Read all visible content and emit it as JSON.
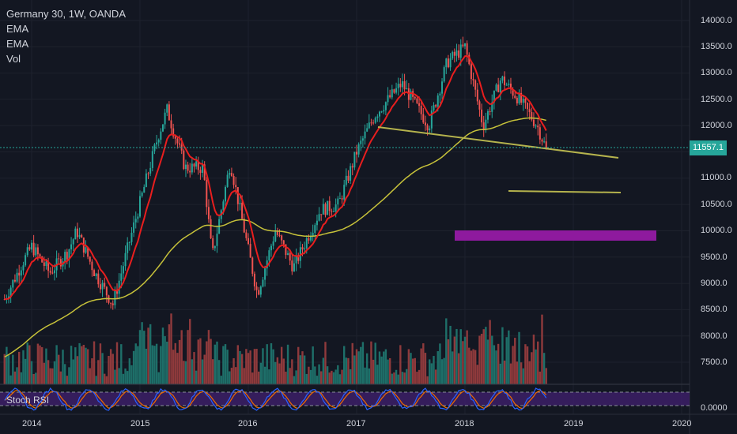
{
  "header": {
    "symbol_line": "Germany 30, 1W, OANDA",
    "indicators": [
      "EMA",
      "EMA",
      "Vol"
    ]
  },
  "rsi_pane": {
    "label": "Stoch RSI",
    "axis_value": "0.0000"
  },
  "price_axis": {
    "ticks": [
      "14000.0",
      "13500.0",
      "13000.0",
      "12500.0",
      "12000.0",
      "11500.0",
      "11000.0",
      "10500.0",
      "10000.0",
      "9500.0",
      "9000.0",
      "8500.0",
      "8000.0",
      "7500.0"
    ],
    "current_price": "11557.1"
  },
  "time_axis": {
    "ticks": [
      "2014",
      "2015",
      "2016",
      "2017",
      "2018",
      "2019",
      "2020"
    ]
  },
  "colors": {
    "background": "#131722",
    "up": "#26a69a",
    "down": "#ef5350",
    "ema_fast": "#e91e1e",
    "ema_slow": "#c7c23a",
    "trendline": "#b5b34d",
    "zone": "#8e1a9e",
    "rsi_k": "#2962ff",
    "rsi_d": "#ef6c00"
  },
  "chart_data": {
    "type": "candlestick",
    "instrument": "Germany 30",
    "timeframe": "1W",
    "source": "OANDA",
    "ylim": [
      7000,
      14300
    ],
    "xlim": [
      "2013-10",
      "2020-03"
    ],
    "price_path": [
      {
        "date": "2013-10",
        "close": 8700
      },
      {
        "date": "2013-12",
        "close": 9400
      },
      {
        "date": "2014-01",
        "close": 9700
      },
      {
        "date": "2014-03",
        "close": 9200
      },
      {
        "date": "2014-05",
        "close": 9600
      },
      {
        "date": "2014-06",
        "close": 10000
      },
      {
        "date": "2014-08",
        "close": 9200
      },
      {
        "date": "2014-10",
        "close": 8600
      },
      {
        "date": "2014-12",
        "close": 9900
      },
      {
        "date": "2015-03",
        "close": 11800
      },
      {
        "date": "2015-04",
        "close": 12300
      },
      {
        "date": "2015-06",
        "close": 11200
      },
      {
        "date": "2015-08",
        "close": 11200
      },
      {
        "date": "2015-09",
        "close": 9500
      },
      {
        "date": "2015-11",
        "close": 11300
      },
      {
        "date": "2016-02",
        "close": 8800
      },
      {
        "date": "2016-04",
        "close": 10000
      },
      {
        "date": "2016-06",
        "close": 9300
      },
      {
        "date": "2016-09",
        "close": 10400
      },
      {
        "date": "2016-11",
        "close": 10500
      },
      {
        "date": "2017-01",
        "close": 11500
      },
      {
        "date": "2017-03",
        "close": 12200
      },
      {
        "date": "2017-06",
        "close": 12800
      },
      {
        "date": "2017-09",
        "close": 12000
      },
      {
        "date": "2017-11",
        "close": 13200
      },
      {
        "date": "2018-01",
        "close": 13500
      },
      {
        "date": "2018-03",
        "close": 12000
      },
      {
        "date": "2018-05",
        "close": 12900
      },
      {
        "date": "2018-07",
        "close": 12500
      },
      {
        "date": "2018-09",
        "close": 12000
      },
      {
        "date": "2018-10",
        "close": 11557.1
      }
    ],
    "current_price": 11557.1
  }
}
